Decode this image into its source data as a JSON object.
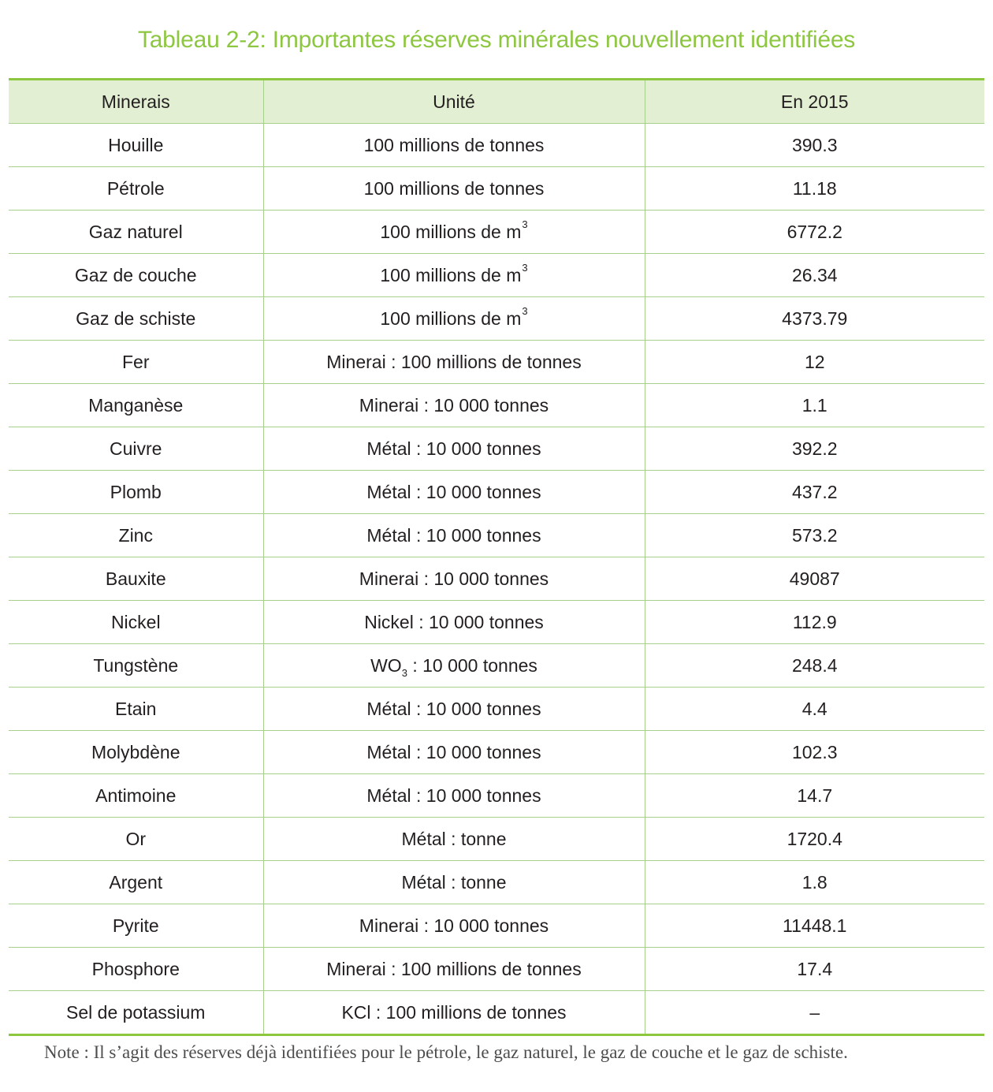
{
  "title": "Tableau 2-2: Importantes réserves minérales nouvellement identifiées",
  "table": {
    "headers": [
      "Minerais",
      "Unité",
      "En 2015"
    ],
    "rows": [
      {
        "mineral": "Houille",
        "unit": "100 millions de tonnes",
        "value": "390.3"
      },
      {
        "mineral": "Pétrole",
        "unit": "100 millions de tonnes",
        "value": "11.18"
      },
      {
        "mineral": "Gaz naturel",
        "unit": "100 millions de m",
        "unit_sup": "3",
        "value": "6772.2"
      },
      {
        "mineral": "Gaz de couche",
        "unit": "100 millions de m",
        "unit_sup": "3",
        "value": "26.34"
      },
      {
        "mineral": "Gaz de schiste",
        "unit": "100 millions de m",
        "unit_sup": "3",
        "value": "4373.79"
      },
      {
        "mineral": "Fer",
        "unit": "Minerai : 100 millions de tonnes",
        "value": "12"
      },
      {
        "mineral": "Manganèse",
        "unit": "Minerai : 10 000 tonnes",
        "value": "1.1"
      },
      {
        "mineral": "Cuivre",
        "unit": "Métal : 10 000 tonnes",
        "value": "392.2"
      },
      {
        "mineral": "Plomb",
        "unit": "Métal : 10 000 tonnes",
        "value": "437.2"
      },
      {
        "mineral": "Zinc",
        "unit": "Métal : 10 000 tonnes",
        "value": "573.2"
      },
      {
        "mineral": "Bauxite",
        "unit": "Minerai : 10 000 tonnes",
        "value": "49087"
      },
      {
        "mineral": "Nickel",
        "unit": "Nickel : 10 000 tonnes",
        "value": "112.9"
      },
      {
        "mineral": "Tungstène",
        "unit_pre": "WO",
        "unit_sub": "3",
        "unit": " : 10 000 tonnes",
        "value": "248.4"
      },
      {
        "mineral": "Etain",
        "unit": "Métal : 10 000 tonnes",
        "value": "4.4"
      },
      {
        "mineral": "Molybdène",
        "unit": "Métal : 10 000 tonnes",
        "value": "102.3"
      },
      {
        "mineral": "Antimoine",
        "unit": "Métal : 10 000 tonnes",
        "value": "14.7"
      },
      {
        "mineral": "Or",
        "unit": "Métal : tonne",
        "value": "1720.4"
      },
      {
        "mineral": "Argent",
        "unit": "Métal : tonne",
        "value": "1.8"
      },
      {
        "mineral": "Pyrite",
        "unit": "Minerai : 10 000 tonnes",
        "value": "11448.1"
      },
      {
        "mineral": "Phosphore",
        "unit": "Minerai : 100 millions de tonnes",
        "value": "17.4"
      },
      {
        "mineral": "Sel de potassium",
        "unit": "KCl : 100 millions de tonnes",
        "value": "–"
      }
    ]
  },
  "note": "Note : Il s’agit des réserves déjà identifiées pour le pétrole, le gaz naturel, le gaz de couche et le gaz de schiste.",
  "colors": {
    "accent": "#8dc63f",
    "header_bg": "#e3efd3",
    "rule": "#a8d08d"
  }
}
